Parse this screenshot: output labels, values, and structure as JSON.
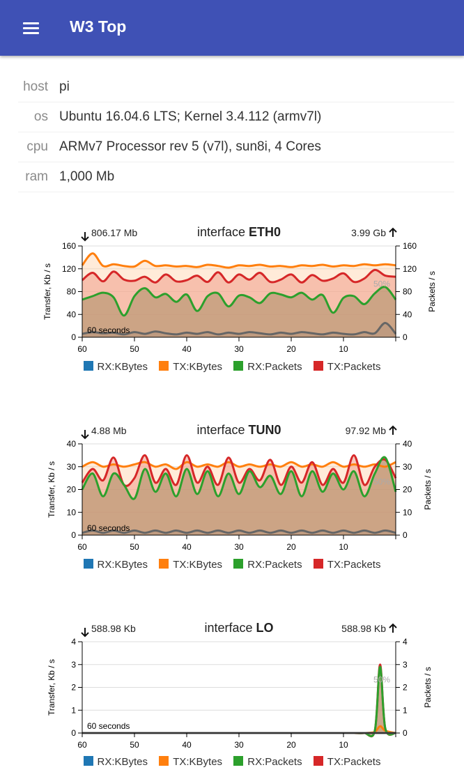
{
  "app": {
    "title": "W3 Top",
    "menu_icon": "hamburger-menu-icon"
  },
  "host_info": [
    {
      "key": "host",
      "value": "pi"
    },
    {
      "key": "os",
      "value": "Ubuntu 16.04.6 LTS; Kernel 3.4.112 (armv7l)"
    },
    {
      "key": "cpu",
      "value": "ARMv7 Processor rev 5 (v7l), sun8i, 4 Cores"
    },
    {
      "key": "ram",
      "value": "1,000 Mb"
    }
  ],
  "legend": [
    {
      "label": "RX:KBytes",
      "color": "#1f77b4"
    },
    {
      "label": "TX:KBytes",
      "color": "#ff7f0e"
    },
    {
      "label": "RX:Packets",
      "color": "#2ca02c"
    },
    {
      "label": "TX:Packets",
      "color": "#d62728"
    }
  ],
  "chart_data": [
    {
      "type": "area",
      "title_prefix": "interface",
      "title_name": "ETH0",
      "rx_total": "806.17 Mb",
      "tx_total": "3.99 Gb",
      "ylabel_left": "Transfer, Kb / s",
      "ylabel_right": "Packets / s",
      "yticks": [
        0,
        40,
        80,
        120,
        160
      ],
      "ylim": [
        0,
        160
      ],
      "xticks": [
        60,
        50,
        40,
        30,
        20,
        10
      ],
      "xlim": [
        60,
        0
      ],
      "window_label": "60 seconds",
      "pct_label": "50%",
      "x": [
        60,
        58,
        56,
        54,
        52,
        50,
        48,
        46,
        44,
        42,
        40,
        38,
        36,
        34,
        32,
        30,
        28,
        26,
        24,
        22,
        20,
        18,
        16,
        14,
        12,
        10,
        8,
        6,
        4,
        2,
        0
      ],
      "series": [
        {
          "values": [
            126,
            147,
            125,
            128,
            125,
            124,
            134,
            125,
            126,
            124,
            125,
            123,
            127,
            125,
            122,
            126,
            125,
            127,
            124,
            125,
            123,
            126,
            125,
            127,
            124,
            126,
            125,
            128,
            126,
            128,
            126
          ]
        },
        {
          "values": [
            100,
            113,
            98,
            115,
            101,
            99,
            106,
            96,
            110,
            98,
            100,
            108,
            97,
            114,
            96,
            110,
            101,
            113,
            97,
            101,
            110,
            96,
            109,
            99,
            103,
            112,
            97,
            103,
            118,
            108,
            106
          ]
        },
        {
          "values": [
            66,
            72,
            78,
            70,
            38,
            72,
            86,
            70,
            76,
            62,
            75,
            46,
            72,
            77,
            54,
            73,
            70,
            60,
            77,
            75,
            70,
            78,
            66,
            74,
            43,
            69,
            72,
            58,
            77,
            88,
            66
          ]
        },
        {
          "values": [
            6,
            9,
            7,
            8,
            5,
            9,
            6,
            10,
            7,
            5,
            8,
            6,
            9,
            5,
            8,
            6,
            9,
            7,
            5,
            8,
            6,
            9,
            7,
            5,
            8,
            6,
            5,
            9,
            7,
            25,
            6
          ]
        }
      ]
    },
    {
      "type": "area",
      "title_prefix": "interface",
      "title_name": "TUN0",
      "rx_total": "4.88 Mb",
      "tx_total": "97.92 Mb",
      "ylabel_left": "Transfer, Kb / s",
      "ylabel_right": "Packets / s",
      "yticks": [
        0,
        10,
        20,
        30,
        40
      ],
      "ylim": [
        0,
        40
      ],
      "xticks": [
        60,
        50,
        40,
        30,
        20,
        10
      ],
      "xlim": [
        60,
        0
      ],
      "window_label": "60 seconds",
      "pct_label": "50%",
      "x": [
        60,
        58,
        56,
        54,
        52,
        50,
        48,
        46,
        44,
        42,
        40,
        38,
        36,
        34,
        32,
        30,
        28,
        26,
        24,
        22,
        20,
        18,
        16,
        14,
        12,
        10,
        8,
        6,
        4,
        2,
        0
      ],
      "series": [
        {
          "values": [
            30,
            32,
            30,
            31,
            30,
            31,
            32,
            30,
            31,
            29,
            32,
            30,
            31,
            30,
            32,
            30,
            31,
            30,
            31,
            30,
            32,
            30,
            31,
            30,
            32,
            30,
            31,
            30,
            31,
            30,
            32
          ]
        },
        {
          "values": [
            23,
            29,
            24,
            34,
            22,
            25,
            35,
            23,
            29,
            22,
            35,
            23,
            30,
            22,
            34,
            23,
            29,
            24,
            33,
            22,
            30,
            23,
            32,
            22,
            29,
            23,
            35,
            22,
            30,
            33,
            25
          ]
        },
        {
          "values": [
            20,
            27,
            17,
            27,
            22,
            16,
            29,
            19,
            27,
            17,
            29,
            18,
            28,
            17,
            27,
            18,
            28,
            21,
            26,
            18,
            28,
            17,
            28,
            19,
            27,
            20,
            28,
            17,
            27,
            34,
            19
          ]
        },
        {
          "values": [
            1,
            2,
            1,
            2,
            1,
            2,
            1,
            2,
            1,
            2,
            1,
            2,
            1,
            2,
            1,
            2,
            1,
            2,
            1,
            2,
            1,
            2,
            1,
            2,
            1,
            2,
            1,
            2,
            1,
            2,
            1
          ]
        }
      ]
    },
    {
      "type": "area",
      "title_prefix": "interface",
      "title_name": "LO",
      "rx_total": "588.98 Kb",
      "tx_total": "588.98 Kb",
      "ylabel_left": "Transfer, Kb / s",
      "ylabel_right": "Packets / s",
      "yticks": [
        0,
        1,
        2,
        3,
        4
      ],
      "ylim": [
        0,
        4
      ],
      "xticks": [
        60,
        50,
        40,
        30,
        20,
        10
      ],
      "xlim": [
        60,
        0
      ],
      "window_label": "60 seconds",
      "pct_label": "50%",
      "x": [
        60,
        58,
        56,
        54,
        52,
        50,
        48,
        46,
        44,
        42,
        40,
        38,
        36,
        34,
        32,
        30,
        28,
        26,
        24,
        22,
        20,
        18,
        16,
        14,
        12,
        10,
        8,
        6,
        4,
        3,
        2,
        0
      ],
      "series": [
        {
          "values": [
            0,
            0,
            0,
            0,
            0,
            0,
            0,
            0,
            0,
            0,
            0,
            0,
            0,
            0,
            0,
            0,
            0,
            0,
            0,
            0,
            0,
            0,
            0,
            0,
            0,
            0,
            0,
            0,
            0.05,
            0.3,
            0.1,
            0
          ]
        },
        {
          "values": [
            0,
            0,
            0,
            0,
            0,
            0,
            0,
            0,
            0,
            0,
            0,
            0,
            0,
            0,
            0,
            0,
            0,
            0,
            0,
            0,
            0,
            0,
            0,
            0,
            0,
            0,
            0,
            0,
            0.1,
            3.0,
            0.2,
            0
          ]
        },
        {
          "values": [
            0,
            0,
            0,
            0,
            0,
            0,
            0,
            0,
            0,
            0,
            0,
            0,
            0,
            0,
            0,
            0,
            0,
            0,
            0,
            0,
            0,
            0,
            0,
            0,
            0,
            0,
            0,
            0,
            0.1,
            2.9,
            0.2,
            0
          ]
        },
        {
          "values": [
            0,
            0,
            0,
            0,
            0,
            0,
            0,
            0,
            0,
            0,
            0,
            0,
            0,
            0,
            0,
            0,
            0,
            0,
            0,
            0,
            0,
            0,
            0,
            0,
            0,
            0,
            0,
            0,
            0,
            0,
            0,
            0
          ]
        }
      ]
    }
  ]
}
